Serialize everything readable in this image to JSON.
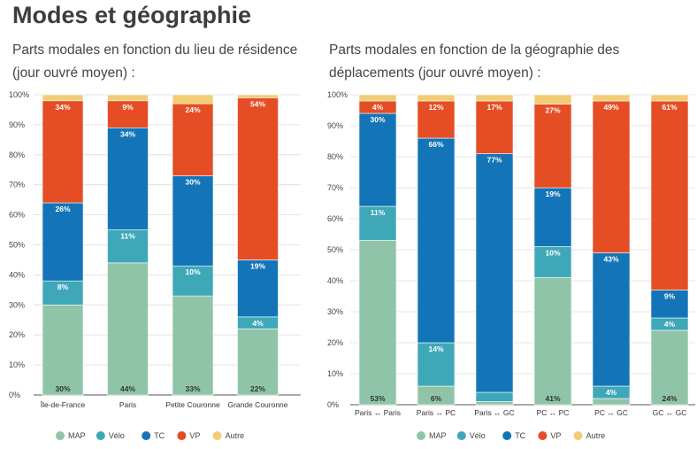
{
  "page": {
    "title": "Modes et géographie"
  },
  "colors": {
    "MAP": "#8fc4a8",
    "Vélo": "#3fa8b8",
    "TC": "#1375b7",
    "VP": "#e54d25",
    "Autre": "#f3cd74"
  },
  "chart_data": [
    {
      "type": "bar",
      "stacked": true,
      "title": "Parts modales en fonction du lieu de résidence (jour ouvré moyen) :",
      "categories": [
        "Île-de-France",
        "Paris",
        "Petite Couronne",
        "Grande Couronne"
      ],
      "ylim": [
        0,
        100
      ],
      "yticks": [
        "0%",
        "10%",
        "20%",
        "30%",
        "40%",
        "50%",
        "60%",
        "70%",
        "80%",
        "90%",
        "100%"
      ],
      "legend": "bottom",
      "series": [
        {
          "name": "MAP",
          "values": [
            30,
            44,
            33,
            22
          ],
          "labels": [
            "30%",
            "44%",
            "33%",
            "22%"
          ]
        },
        {
          "name": "Vélo",
          "values": [
            8,
            11,
            10,
            4
          ],
          "labels": [
            "8%",
            "11%",
            "10%",
            "4%"
          ]
        },
        {
          "name": "TC",
          "values": [
            26,
            34,
            30,
            19
          ],
          "labels": [
            "26%",
            "34%",
            "30%",
            "19%"
          ]
        },
        {
          "name": "VP",
          "values": [
            34,
            9,
            24,
            54
          ],
          "labels": [
            "34%",
            "9%",
            "24%",
            "54%"
          ]
        },
        {
          "name": "Autre",
          "values": [
            2,
            2,
            3,
            1
          ],
          "labels": [
            "",
            "",
            "",
            ""
          ]
        }
      ]
    },
    {
      "type": "bar",
      "stacked": true,
      "title": "Parts modales en fonction de la géographie des déplacements (jour ouvré moyen) :",
      "categories": [
        "Paris ↔ Paris",
        "Paris ↔ PC",
        "Paris ↔ GC",
        "PC ↔ PC",
        "PC ↔ GC",
        "GC ↔ GC"
      ],
      "ylim": [
        0,
        100
      ],
      "yticks": [
        "0%",
        "10%",
        "20%",
        "30%",
        "40%",
        "50%",
        "60%",
        "70%",
        "80%",
        "90%",
        "100%"
      ],
      "legend": "bottom",
      "series": [
        {
          "name": "MAP",
          "values": [
            53,
            6,
            1,
            41,
            2,
            24
          ],
          "labels": [
            "53%",
            "6%",
            "",
            "41%",
            "",
            "24%"
          ]
        },
        {
          "name": "Vélo",
          "values": [
            11,
            14,
            3,
            10,
            4,
            4
          ],
          "labels": [
            "11%",
            "14%",
            "",
            "10%",
            "4%",
            "4%"
          ]
        },
        {
          "name": "TC",
          "values": [
            30,
            66,
            77,
            19,
            43,
            9
          ],
          "labels": [
            "30%",
            "66%",
            "77%",
            "19%",
            "43%",
            "9%"
          ]
        },
        {
          "name": "VP",
          "values": [
            4,
            12,
            17,
            27,
            49,
            61
          ],
          "labels": [
            "4%",
            "12%",
            "17%",
            "27%",
            "49%",
            "61%"
          ]
        },
        {
          "name": "Autre",
          "values": [
            2,
            2,
            2,
            3,
            2,
            2
          ],
          "labels": [
            "",
            "",
            "",
            "",
            "",
            ""
          ]
        }
      ]
    }
  ]
}
